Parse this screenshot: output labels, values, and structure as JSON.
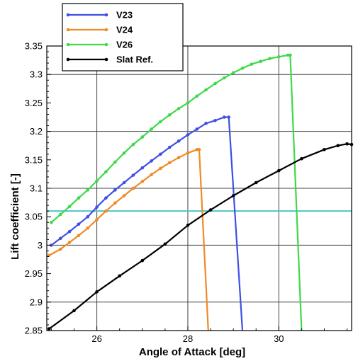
{
  "chart_data": {
    "type": "line",
    "title": "",
    "xlabel": "Angle of Attack [deg]",
    "ylabel": "Lift coefficient [-]",
    "xlim": [
      24.9,
      31.6
    ],
    "ylim": [
      2.85,
      3.35
    ],
    "x_ticks": [
      26,
      28,
      30
    ],
    "x_tick_labels": [
      "26",
      "28",
      "30"
    ],
    "y_ticks": [
      2.85,
      2.9,
      2.95,
      3.0,
      3.05,
      3.1,
      3.15,
      3.2,
      3.25,
      3.3,
      3.35
    ],
    "y_tick_labels": [
      "2.85",
      "2.9",
      "2.95",
      "3",
      "3.05",
      "3.1",
      "3.15",
      "3.2",
      "3.25",
      "3.3",
      "3.35"
    ],
    "grid": true,
    "legend_position": "top-left",
    "reference_line": {
      "y": 3.06,
      "color": "#4fc4c8"
    },
    "series": [
      {
        "name": "V23",
        "color": "#3f4fe6",
        "x": [
          25.0,
          25.2,
          25.4,
          25.6,
          25.8,
          26.0,
          26.2,
          26.4,
          26.6,
          26.8,
          27.0,
          27.2,
          27.4,
          27.6,
          27.8,
          28.0,
          28.2,
          28.4,
          28.6,
          28.8,
          28.9,
          29.2
        ],
        "y": [
          3.0,
          3.012,
          3.024,
          3.037,
          3.05,
          3.067,
          3.083,
          3.097,
          3.11,
          3.123,
          3.136,
          3.148,
          3.16,
          3.172,
          3.183,
          3.194,
          3.204,
          3.214,
          3.219,
          3.225,
          3.225,
          2.85
        ]
      },
      {
        "name": "V24",
        "color": "#f08a24",
        "x": [
          24.95,
          25.2,
          25.4,
          25.6,
          25.8,
          26.0,
          26.2,
          26.4,
          26.6,
          26.8,
          27.0,
          27.2,
          27.4,
          27.6,
          27.8,
          28.0,
          28.2,
          28.25,
          28.45
        ],
        "y": [
          2.982,
          2.993,
          3.005,
          3.017,
          3.03,
          3.045,
          3.06,
          3.074,
          3.087,
          3.1,
          3.112,
          3.124,
          3.135,
          3.145,
          3.154,
          3.162,
          3.168,
          3.168,
          2.85
        ]
      },
      {
        "name": "V26",
        "color": "#3ed94a",
        "x": [
          25.0,
          25.2,
          25.4,
          25.6,
          25.8,
          26.0,
          26.2,
          26.4,
          26.6,
          26.8,
          27.0,
          27.2,
          27.4,
          27.6,
          27.8,
          28.0,
          28.2,
          28.4,
          28.6,
          28.8,
          29.0,
          29.2,
          29.4,
          29.6,
          29.8,
          30.0,
          30.2,
          30.25,
          30.5
        ],
        "y": [
          3.04,
          3.054,
          3.068,
          3.083,
          3.097,
          3.113,
          3.129,
          3.146,
          3.162,
          3.177,
          3.19,
          3.204,
          3.217,
          3.229,
          3.24,
          3.25,
          3.262,
          3.273,
          3.284,
          3.294,
          3.303,
          3.311,
          3.318,
          3.323,
          3.328,
          3.331,
          3.334,
          3.334,
          2.85
        ]
      },
      {
        "name": "Slat Ref.",
        "color": "#000000",
        "x": [
          24.95,
          25.5,
          26.0,
          26.5,
          27.0,
          27.5,
          28.0,
          28.5,
          29.0,
          29.5,
          30.0,
          30.5,
          31.0,
          31.3,
          31.5,
          31.6
        ],
        "y": [
          2.853,
          2.885,
          2.918,
          2.946,
          2.973,
          3.002,
          3.035,
          3.062,
          3.087,
          3.11,
          3.131,
          3.152,
          3.168,
          3.175,
          3.178,
          3.177
        ]
      }
    ]
  }
}
